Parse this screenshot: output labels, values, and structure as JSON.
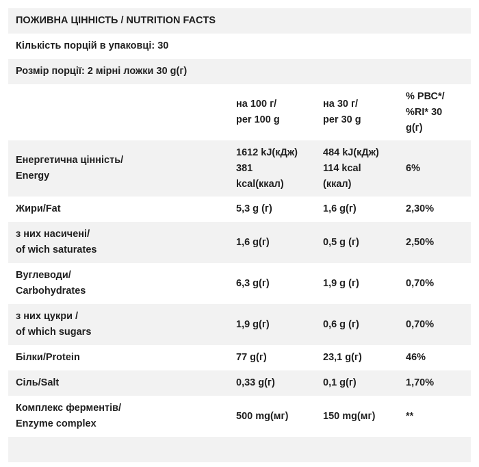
{
  "title": "ПОЖИВНА ЦІННІСТЬ / NUTRITION FACTS",
  "servings_per_pack": "Кількість порцій в упаковці: 30",
  "serving_size": "Розмір порції: 2 мірні ложки 30 g(г)",
  "header": {
    "col2": [
      "на 100 г/",
      "per 100 g"
    ],
    "col3": [
      "на 30 г/",
      "per 30 g"
    ],
    "col4": [
      "% РВС*/",
      "%RI* 30",
      "g(г)"
    ]
  },
  "rows": [
    {
      "name": [
        "Енергетична цінність/",
        "Energy"
      ],
      "per100": [
        "1612 kJ(кДж)",
        "381",
        "kcal(ккал)"
      ],
      "per30": [
        "484 kJ(кДж)",
        "114 kcal",
        "(ккал)"
      ],
      "ri": [
        "6%"
      ]
    },
    {
      "name": [
        "Жири/Fat"
      ],
      "per100": [
        "5,3 g (г)"
      ],
      "per30": [
        "1,6 g(г)"
      ],
      "ri": [
        "2,30%"
      ]
    },
    {
      "name": [
        "з них насичені/",
        "of wich saturates"
      ],
      "per100": [
        "1,6 g(г)"
      ],
      "per30": [
        "0,5 g (г)"
      ],
      "ri": [
        "2,50%"
      ]
    },
    {
      "name": [
        "Вуглеводи/",
        "Carbohydrates"
      ],
      "per100": [
        "6,3 g(г)"
      ],
      "per30": [
        "1,9 g (г)"
      ],
      "ri": [
        "0,70%"
      ]
    },
    {
      "name": [
        "з них цукри /",
        "of which sugars"
      ],
      "per100": [
        "1,9 g(г)"
      ],
      "per30": [
        "0,6 g (г)"
      ],
      "ri": [
        "0,70%"
      ]
    },
    {
      "name": [
        "Білки/Protein"
      ],
      "per100": [
        "77 g(г)"
      ],
      "per30": [
        "23,1 g(г)"
      ],
      "ri": [
        "46%"
      ]
    },
    {
      "name": [
        "Сіль/Salt"
      ],
      "per100": [
        "0,33 g(г)"
      ],
      "per30": [
        "0,1 g(г)"
      ],
      "ri": [
        "1,70%"
      ]
    },
    {
      "name": [
        "Комплекс ферментів/",
        "Enzyme complex"
      ],
      "per100": [
        "500 mg(мг)"
      ],
      "per30": [
        "150 mg(мг)"
      ],
      "ri": [
        "**"
      ]
    }
  ]
}
